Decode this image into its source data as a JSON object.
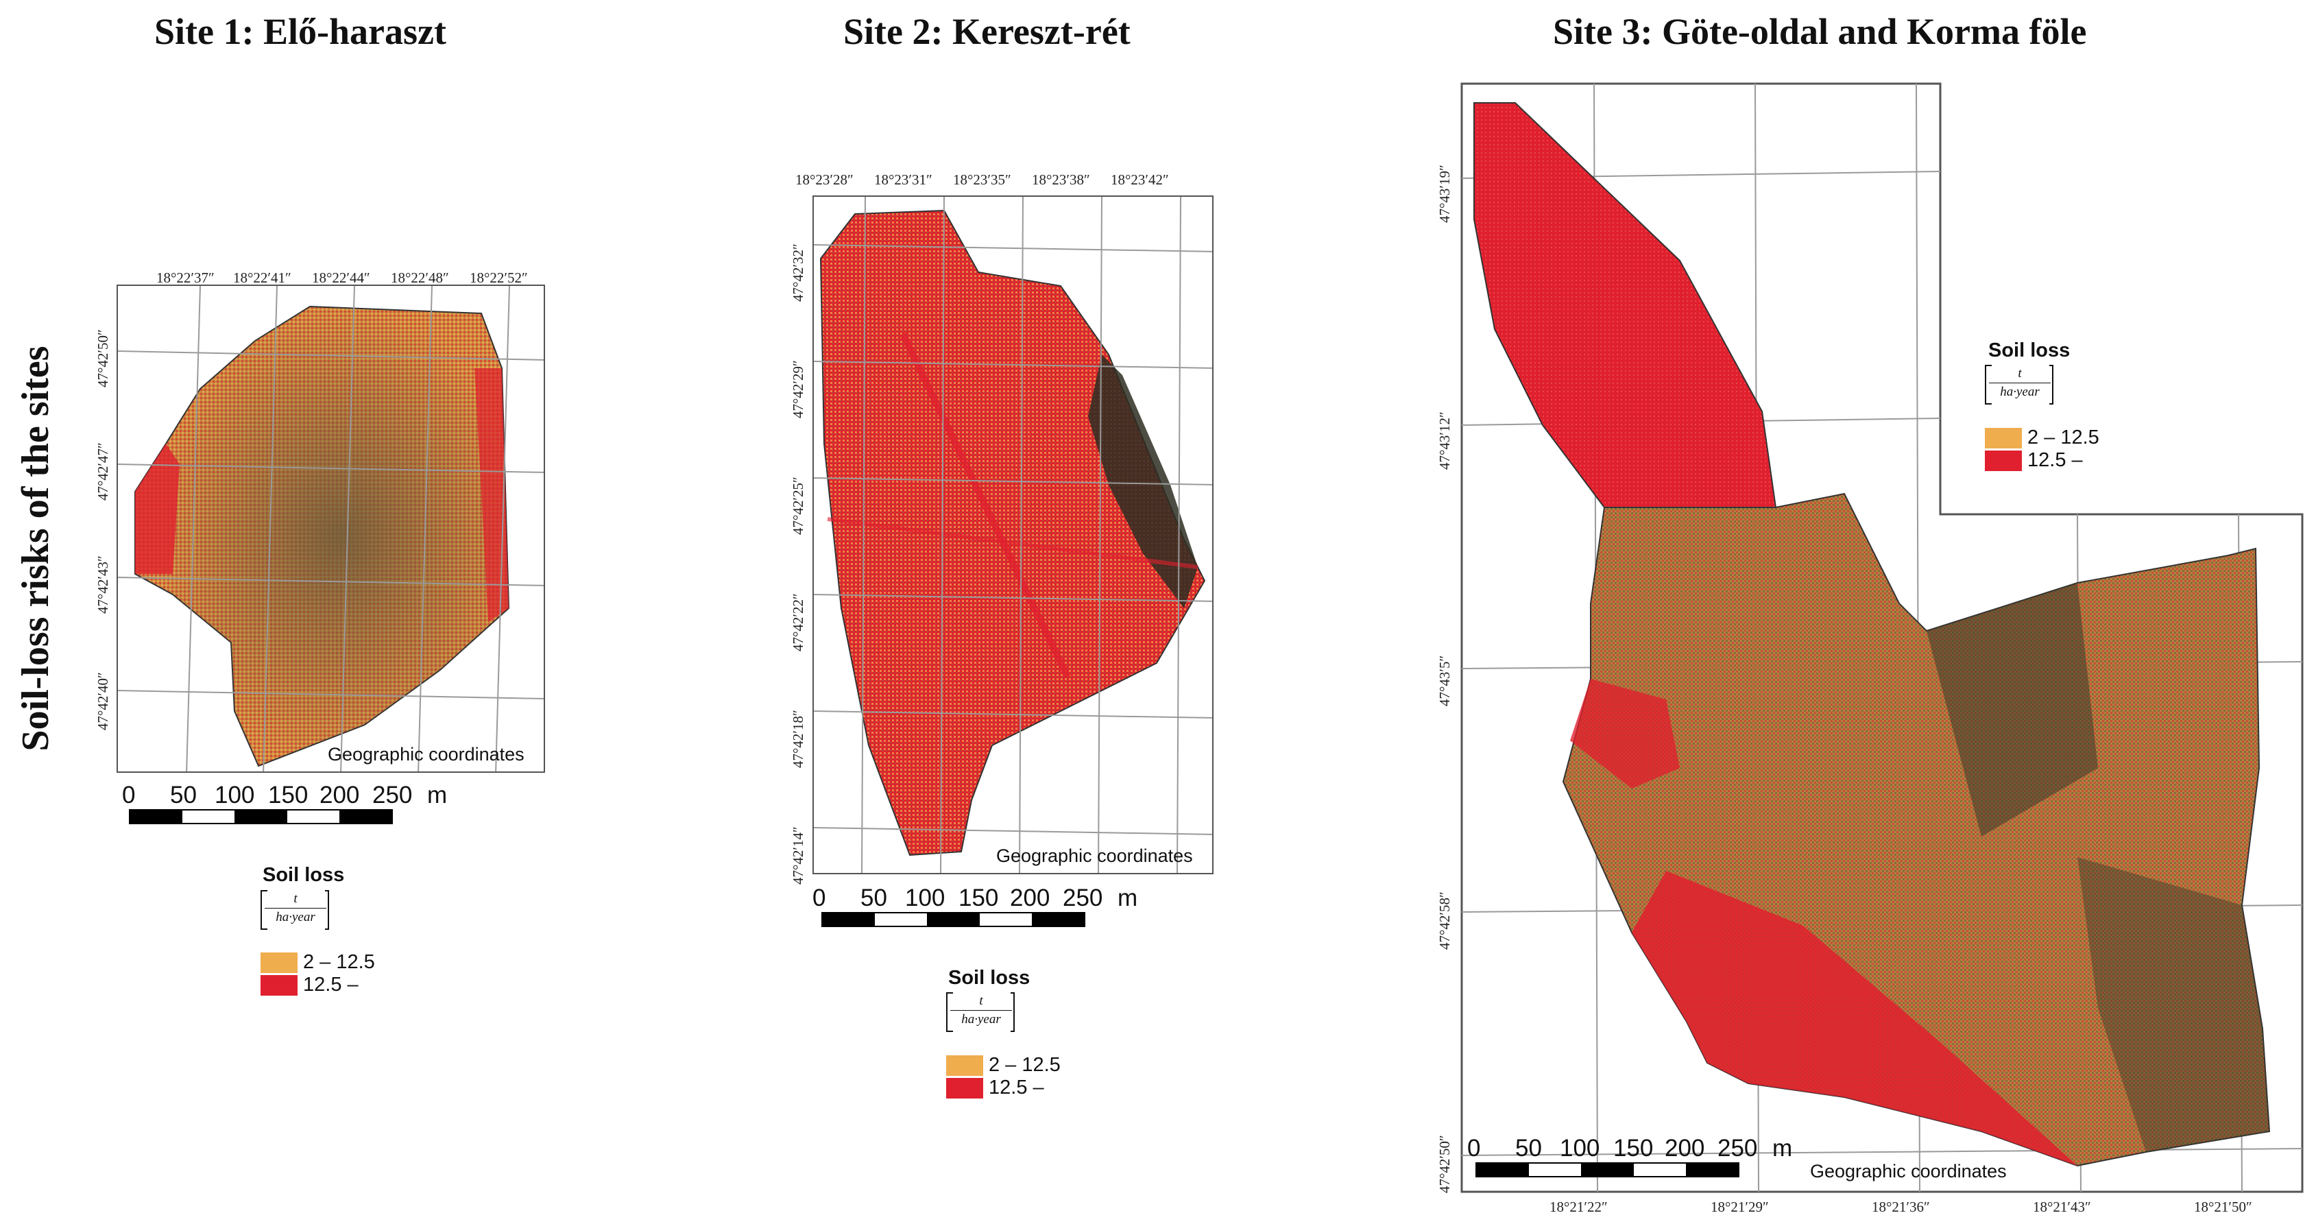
{
  "row_label": "Soil-loss risks of the sites",
  "colors": {
    "low_class": "#f0ad4e",
    "high_class": "#e0202e",
    "dark_patch": "#3a3a2a",
    "grid": "#9a9a9a"
  },
  "legend": {
    "title": "Soil loss",
    "unit_numerator": "t",
    "unit_denominator": "ha·year",
    "classes": [
      {
        "label": "2 – 12.5",
        "color": "#f0ad4e"
      },
      {
        "label": "12.5 –",
        "color": "#e0202e"
      }
    ]
  },
  "scale": {
    "labels": "0   50  100 150 200 250 m"
  },
  "geo_label": "Geographic coordinates",
  "sites": [
    {
      "title": "Site 1: Elő-haraszt",
      "lon_labels": [
        "18°22′37″",
        "18°22′41″",
        "18°22′44″",
        "18°22′48″",
        "18°22′52″"
      ],
      "lat_labels": [
        "47°42′50″",
        "47°42′47″",
        "47°42′43″",
        "47°42′40″"
      ]
    },
    {
      "title": "Site 2: Kereszt-rét",
      "lon_labels": [
        "18°23′28″",
        "18°23′31″",
        "18°23′35″",
        "18°23′38″",
        "18°23′42″"
      ],
      "lat_labels": [
        "47°42′32″",
        "47°42′29″",
        "47°42′25″",
        "47°42′22″",
        "47°42′18″",
        "47°42′14″"
      ]
    },
    {
      "title": "Site 3: Göte-oldal and Korma föle",
      "lon_labels": [
        "18°21′22″",
        "18°21′29″",
        "18°21′36″",
        "18°21′43″",
        "18°21′50″"
      ],
      "lat_labels": [
        "47°43′19″",
        "47°43′12″",
        "47°43′5″",
        "47°42′58″",
        "47°42′50″"
      ]
    }
  ]
}
